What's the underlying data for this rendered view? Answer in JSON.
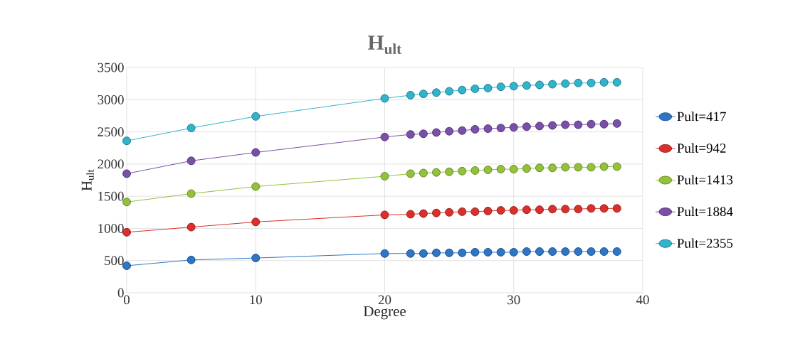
{
  "chart_data": {
    "type": "line",
    "title": "H$_{ult}$",
    "xlabel": "Degree",
    "ylabel": "H$_{ult}$",
    "x": [
      0,
      5,
      10,
      20,
      22,
      23,
      24,
      25,
      26,
      27,
      28,
      29,
      30,
      31,
      32,
      33,
      34,
      35,
      36,
      37,
      38
    ],
    "series": [
      {
        "name": "Pult=417",
        "color": "#2e75c6",
        "values": [
          420,
          510,
          540,
          610,
          610,
          610,
          620,
          620,
          620,
          630,
          630,
          630,
          630,
          640,
          640,
          640,
          640,
          640,
          640,
          640,
          640
        ]
      },
      {
        "name": "Pult=942",
        "color": "#d9302c",
        "values": [
          940,
          1020,
          1100,
          1210,
          1220,
          1230,
          1240,
          1250,
          1260,
          1260,
          1270,
          1280,
          1280,
          1290,
          1290,
          1300,
          1300,
          1300,
          1310,
          1310,
          1310
        ]
      },
      {
        "name": "Pult=1413",
        "color": "#92c13a",
        "values": [
          1410,
          1540,
          1650,
          1810,
          1850,
          1860,
          1870,
          1880,
          1890,
          1900,
          1910,
          1920,
          1920,
          1930,
          1940,
          1940,
          1950,
          1950,
          1950,
          1960,
          1960
        ]
      },
      {
        "name": "Pult=1884",
        "color": "#7a4fa8",
        "values": [
          1850,
          2050,
          2180,
          2420,
          2460,
          2470,
          2490,
          2510,
          2520,
          2540,
          2550,
          2560,
          2570,
          2580,
          2590,
          2600,
          2610,
          2610,
          2620,
          2620,
          2630
        ]
      },
      {
        "name": "Pult=2355",
        "color": "#32b3cc",
        "values": [
          2360,
          2560,
          2740,
          3020,
          3070,
          3090,
          3110,
          3130,
          3150,
          3170,
          3180,
          3200,
          3210,
          3220,
          3230,
          3240,
          3250,
          3260,
          3260,
          3270,
          3270
        ]
      }
    ],
    "xlim": [
      0,
      40
    ],
    "xticks": [
      0,
      10,
      20,
      30,
      40
    ],
    "ylim": [
      0,
      3500
    ],
    "yticks": [
      0,
      500,
      1000,
      1500,
      2000,
      2500,
      3000,
      3500
    ],
    "grid": true,
    "legend": "right",
    "marker": "circle",
    "line_style": "solid"
  }
}
